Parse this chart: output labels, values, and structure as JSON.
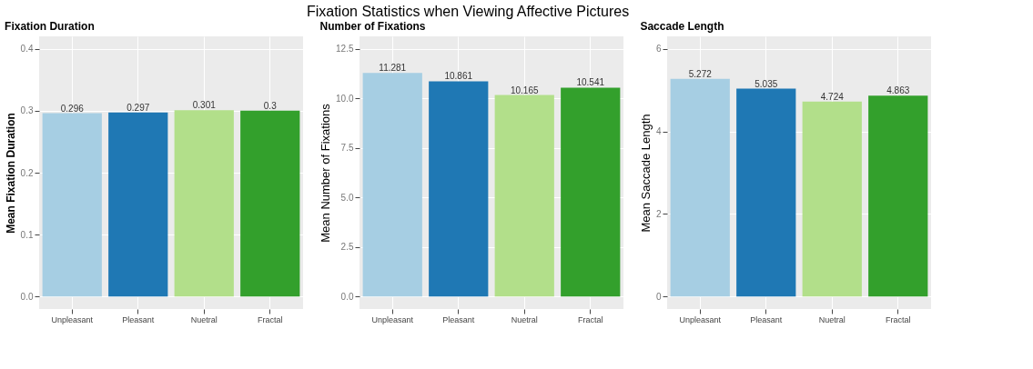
{
  "chart_data": [
    {
      "type": "bar",
      "subtitle": "Fixation Duration",
      "ylabel": "Mean Fixation Duration",
      "categories": [
        "Unpleasant",
        "Pleasant",
        "Nuetral",
        "Fractal"
      ],
      "values": [
        0.296,
        0.297,
        0.301,
        0.3
      ],
      "colors": [
        "#a6cee3",
        "#1f78b4",
        "#b2df8a",
        "#33a02c"
      ],
      "ylim": [
        -0.02,
        0.42
      ],
      "yticks": [
        {
          "value": 0,
          "label": "0.0"
        },
        0.1,
        0.2,
        0.3,
        0.4
      ],
      "grid": true,
      "data_labels": true
    },
    {
      "type": "bar",
      "title": "Fixation Statistics when Viewing Affective Pictures",
      "subtitle": "Number of Fixations",
      "ylabel": "Mean Number of Fixations",
      "categories": [
        "Unpleasant",
        "Pleasant",
        "Nuetral",
        "Fractal"
      ],
      "values": [
        11.281,
        10.861,
        10.165,
        10.541
      ],
      "colors": [
        "#a6cee3",
        "#1f78b4",
        "#b2df8a",
        "#33a02c"
      ],
      "ylim": [
        -0.625,
        13.125
      ],
      "yticks": [
        {
          "value": 0,
          "label": "0.0"
        },
        2.5,
        {
          "value": 5,
          "label": "5.0"
        },
        7.5,
        {
          "value": 10,
          "label": "10.0"
        },
        12.5
      ],
      "grid": true,
      "data_labels": true
    },
    {
      "type": "bar",
      "subtitle": "Saccade Length",
      "ylabel": "Mean Saccade Length",
      "categories": [
        "Unpleasant",
        "Pleasant",
        "Nuetral",
        "Fractal"
      ],
      "values": [
        5.272,
        5.035,
        4.724,
        4.863
      ],
      "colors": [
        "#a6cee3",
        "#1f78b4",
        "#b2df8a",
        "#33a02c"
      ],
      "ylim": [
        -0.3,
        6.3
      ],
      "yticks": [
        0,
        2,
        4,
        6
      ],
      "grid": true,
      "data_labels": true
    }
  ]
}
